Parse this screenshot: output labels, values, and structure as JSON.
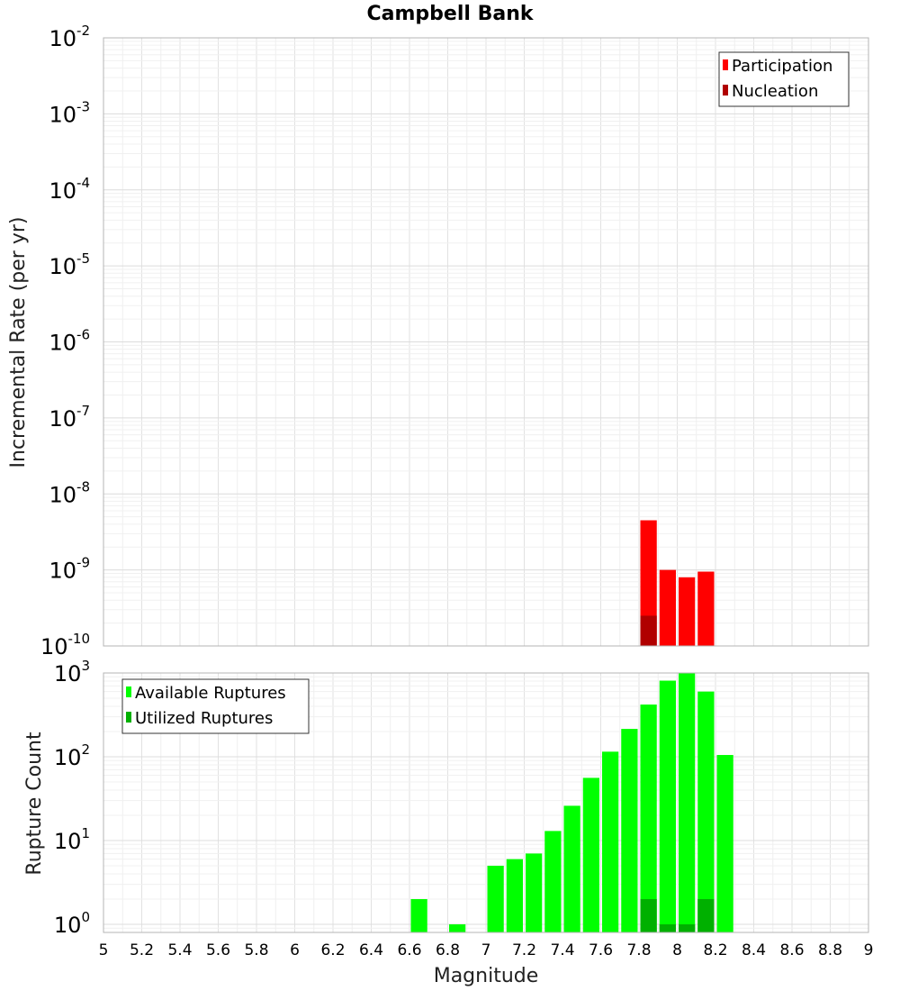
{
  "chart_data": [
    {
      "type": "bar",
      "title": "Campbell Bank",
      "xlabel": "Magnitude",
      "ylabel": "Incremental Rate (per yr)",
      "xlim": [
        5,
        9
      ],
      "ylim": [
        1e-10,
        0.01
      ],
      "y_scale": "log",
      "bar_width": 0.1,
      "grid": true,
      "legend_position": "top-right",
      "series": [
        {
          "name": "Participation",
          "color": "#ff0000",
          "points": [
            {
              "x": 7.85,
              "y": 4.5e-09
            },
            {
              "x": 7.95,
              "y": 1e-09
            },
            {
              "x": 8.05,
              "y": 8e-10
            },
            {
              "x": 8.15,
              "y": 9.5e-10
            }
          ]
        },
        {
          "name": "Nucleation",
          "color": "#b00000",
          "points": [
            {
              "x": 7.85,
              "y": 2.5e-10
            }
          ]
        }
      ],
      "y_ticks": [
        {
          "base": "10",
          "exp": "-10",
          "value": 1e-10
        },
        {
          "base": "10",
          "exp": "-9",
          "value": 1e-09
        },
        {
          "base": "10",
          "exp": "-8",
          "value": 1e-08
        },
        {
          "base": "10",
          "exp": "-7",
          "value": 1e-07
        },
        {
          "base": "10",
          "exp": "-6",
          "value": 1e-06
        },
        {
          "base": "10",
          "exp": "-5",
          "value": 1e-05
        },
        {
          "base": "10",
          "exp": "-4",
          "value": 0.0001
        },
        {
          "base": "10",
          "exp": "-3",
          "value": 0.001
        },
        {
          "base": "10",
          "exp": "-2",
          "value": 0.01
        }
      ]
    },
    {
      "type": "bar",
      "xlabel": "Magnitude",
      "ylabel": "Rupture Count",
      "xlim": [
        5,
        9
      ],
      "ylim": [
        0.8,
        1000
      ],
      "y_scale": "log",
      "bar_width": 0.1,
      "grid": true,
      "legend_position": "top-left",
      "series": [
        {
          "name": "Available Ruptures",
          "color": "#00ff00",
          "points": [
            {
              "x": 6.65,
              "y": 2
            },
            {
              "x": 6.85,
              "y": 1
            },
            {
              "x": 7.05,
              "y": 5
            },
            {
              "x": 7.15,
              "y": 6
            },
            {
              "x": 7.25,
              "y": 7
            },
            {
              "x": 7.35,
              "y": 13
            },
            {
              "x": 7.45,
              "y": 26
            },
            {
              "x": 7.55,
              "y": 56
            },
            {
              "x": 7.65,
              "y": 115
            },
            {
              "x": 7.75,
              "y": 215
            },
            {
              "x": 7.85,
              "y": 420
            },
            {
              "x": 7.95,
              "y": 810
            },
            {
              "x": 8.05,
              "y": 1000
            },
            {
              "x": 8.15,
              "y": 600
            },
            {
              "x": 8.25,
              "y": 105
            }
          ]
        },
        {
          "name": "Utilized Ruptures",
          "color": "#00b000",
          "points": [
            {
              "x": 7.85,
              "y": 2
            },
            {
              "x": 7.95,
              "y": 1
            },
            {
              "x": 8.05,
              "y": 1
            },
            {
              "x": 8.15,
              "y": 2
            }
          ]
        }
      ],
      "x_ticks": [
        "5",
        "5.2",
        "5.4",
        "5.6",
        "5.8",
        "6",
        "6.2",
        "6.4",
        "6.6",
        "6.8",
        "7",
        "7.2",
        "7.4",
        "7.6",
        "7.8",
        "8",
        "8.2",
        "8.4",
        "8.6",
        "8.8",
        "9"
      ],
      "y_ticks": [
        {
          "base": "10",
          "exp": "0",
          "value": 1
        },
        {
          "base": "10",
          "exp": "1",
          "value": 10
        },
        {
          "base": "10",
          "exp": "2",
          "value": 100
        },
        {
          "base": "10",
          "exp": "3",
          "value": 1000
        }
      ]
    }
  ]
}
